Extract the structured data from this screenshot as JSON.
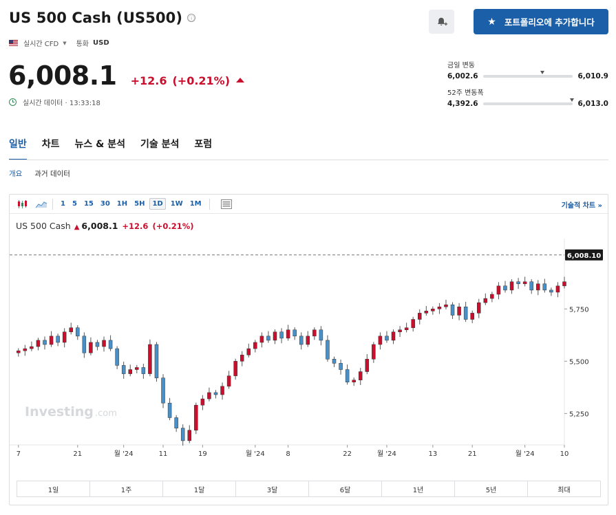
{
  "header": {
    "title": "US 500 Cash (US500)",
    "info_icon": "ⓘ",
    "market_type": "실시간 CFD",
    "currency_label": "통화",
    "currency_value": "USD",
    "portfolio_button": "포트폴리오에 추가합니다"
  },
  "quote": {
    "price": "6,008.1",
    "change": "+12.6",
    "change_pct": "(+0.21%)",
    "data_label": "실시간 데이터 · 13:33:18",
    "up_color": "#c8102e"
  },
  "ranges": [
    {
      "label": "금일 변동",
      "low": "6,002.6",
      "high": "6,010.9",
      "position": 0.66
    },
    {
      "label": "52주 변동폭",
      "low": "4,392.6",
      "high": "6,013.0",
      "position": 0.99
    }
  ],
  "tabs": [
    "일반",
    "차트",
    "뉴스 & 분석",
    "기술 분석",
    "포럼"
  ],
  "subtabs": [
    "개요",
    "과거 데이터"
  ],
  "toolbar": {
    "timeframes": [
      "1",
      "5",
      "15",
      "30",
      "1H",
      "5H",
      "1D",
      "1W",
      "1M"
    ],
    "active_timeframe": "1D",
    "tech_link": "기술적 차트 »"
  },
  "chart_header": {
    "name": "US 500 Cash",
    "arrow": "▲",
    "price": "6,008.1",
    "change": "+12.6",
    "change_pct": "(+0.21%)"
  },
  "chart_data": {
    "type": "candlestick",
    "watermark": "Investing",
    "watermark_suffix": ".com",
    "last_price_label": "6,008.10",
    "last_price": 6008.1,
    "ylim": [
      5100,
      6060
    ],
    "y_ticks": [
      5250,
      5500,
      5750
    ],
    "y_tick_labels": [
      "5,250",
      "5,500",
      "5,750"
    ],
    "x_tick_labels": [
      {
        "label": "7",
        "index": 0
      },
      {
        "label": "21",
        "index": 9
      },
      {
        "label": "월 '24",
        "index": 16
      },
      {
        "label": "11",
        "index": 22
      },
      {
        "label": "19",
        "index": 28
      },
      {
        "label": "월 '24",
        "index": 36
      },
      {
        "label": "8",
        "index": 41
      },
      {
        "label": "22",
        "index": 50
      },
      {
        "label": "월 '24",
        "index": 56
      },
      {
        "label": "13",
        "index": 63
      },
      {
        "label": "21",
        "index": 69
      },
      {
        "label": "월 '24",
        "index": 77
      },
      {
        "label": "10",
        "index": 83
      }
    ],
    "up_color": "#c8102e",
    "down_color": "#4a90c8",
    "closes": [
      5550,
      5560,
      5570,
      5600,
      5580,
      5620,
      5590,
      5640,
      5660,
      5620,
      5540,
      5590,
      5570,
      5600,
      5560,
      5480,
      5440,
      5460,
      5470,
      5440,
      5580,
      5420,
      5300,
      5230,
      5180,
      5120,
      5170,
      5290,
      5320,
      5350,
      5340,
      5380,
      5430,
      5500,
      5530,
      5560,
      5590,
      5620,
      5600,
      5640,
      5610,
      5650,
      5620,
      5580,
      5620,
      5650,
      5600,
      5510,
      5490,
      5460,
      5400,
      5410,
      5450,
      5510,
      5580,
      5620,
      5600,
      5640,
      5650,
      5660,
      5700,
      5730,
      5740,
      5750,
      5760,
      5770,
      5720,
      5760,
      5700,
      5730,
      5780,
      5800,
      5820,
      5860,
      5840,
      5880,
      5870,
      5880,
      5840,
      5870,
      5840,
      5830,
      5860,
      5880
    ]
  },
  "periods": [
    "1일",
    "1주",
    "1달",
    "3달",
    "6달",
    "1년",
    "5년",
    "최대"
  ]
}
